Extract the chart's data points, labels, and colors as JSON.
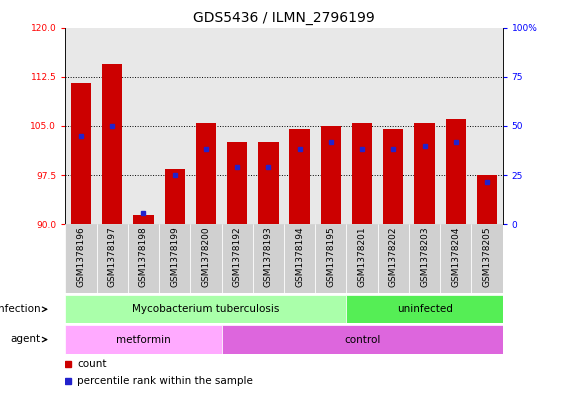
{
  "title": "GDS5436 / ILMN_2796199",
  "samples": [
    "GSM1378196",
    "GSM1378197",
    "GSM1378198",
    "GSM1378199",
    "GSM1378200",
    "GSM1378192",
    "GSM1378193",
    "GSM1378194",
    "GSM1378195",
    "GSM1378201",
    "GSM1378202",
    "GSM1378203",
    "GSM1378204",
    "GSM1378205"
  ],
  "red_values": [
    111.5,
    114.5,
    91.5,
    98.5,
    105.5,
    102.5,
    102.5,
    104.5,
    105.0,
    105.5,
    104.5,
    105.5,
    106.0,
    97.5
  ],
  "blue_values": [
    103.5,
    105.0,
    91.8,
    97.6,
    101.5,
    98.8,
    98.8,
    101.5,
    102.5,
    101.5,
    101.5,
    102.0,
    102.5,
    96.5
  ],
  "ymin": 90,
  "ymax": 120,
  "yticks": [
    90,
    97.5,
    105,
    112.5,
    120
  ],
  "right_yticks": [
    0,
    25,
    50,
    75,
    100
  ],
  "bar_color": "#cc0000",
  "blue_color": "#2222cc",
  "infection_groups": [
    {
      "label": "Mycobacterium tuberculosis",
      "start": 0,
      "end": 9,
      "color": "#aaffaa"
    },
    {
      "label": "uninfected",
      "start": 9,
      "end": 14,
      "color": "#55ee55"
    }
  ],
  "agent_groups": [
    {
      "label": "metformin",
      "start": 0,
      "end": 5,
      "color": "#ffaaff"
    },
    {
      "label": "control",
      "start": 5,
      "end": 14,
      "color": "#dd66dd"
    }
  ],
  "infection_label": "infection",
  "agent_label": "agent",
  "legend_count": "count",
  "legend_percentile": "percentile rank within the sample",
  "title_fontsize": 10,
  "tick_fontsize": 6.5,
  "annot_fontsize": 7.5,
  "label_fontsize": 7.5
}
